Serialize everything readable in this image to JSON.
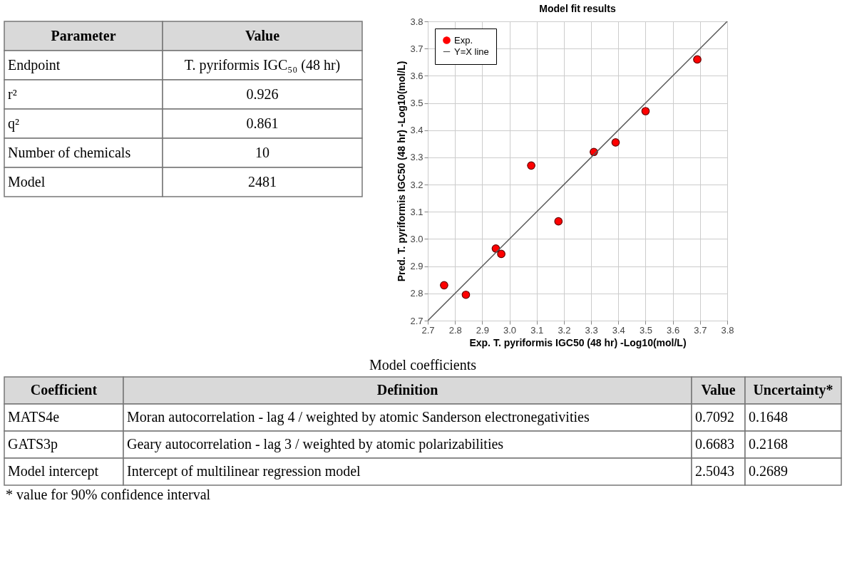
{
  "chart_data": [
    {
      "type": "other",
      "categories": [
        "Parameter",
        "Value"
      ],
      "annotations": [
        "Endpoint",
        "T. pyriformis IGC₅₀ (48 hr)",
        "r²",
        "0.926",
        "q²",
        "0.861",
        "Number of chemicals",
        "10",
        "Model",
        "2481"
      ]
    },
    {
      "type": "scatter",
      "title": "Model fit results",
      "xlabel": "Exp. T. pyriformis IGC50 (48 hr) -Log10(mol/L)",
      "ylabel": "Pred. T. pyriformis IGC50 (48 hr) -Log10(mol/L)",
      "xlim": [
        2.7,
        3.8
      ],
      "ylim": [
        2.7,
        3.8
      ],
      "xticks": [
        {
          "value": 2.7,
          "label": "2.7"
        },
        {
          "value": 2.8,
          "label": "2.8"
        },
        {
          "value": 2.9,
          "label": "2.9"
        },
        {
          "value": 3.0,
          "label": "3.0"
        },
        {
          "value": 3.1,
          "label": "3.1"
        },
        {
          "value": 3.2,
          "label": "3.2"
        },
        {
          "value": 3.3,
          "label": "3.3"
        },
        {
          "value": 3.4,
          "label": "3.4"
        },
        {
          "value": 3.5,
          "label": "3.5"
        },
        {
          "value": 3.6,
          "label": "3.6"
        },
        {
          "value": 3.7,
          "label": "3.7"
        },
        {
          "value": 3.8,
          "label": "3.8"
        }
      ],
      "yticks": [
        {
          "value": 2.7,
          "label": "2.7"
        },
        {
          "value": 2.8,
          "label": "2.8"
        },
        {
          "value": 2.9,
          "label": "2.9"
        },
        {
          "value": 3.0,
          "label": "3.0"
        },
        {
          "value": 3.1,
          "label": "3.1"
        },
        {
          "value": 3.2,
          "label": "3.2"
        },
        {
          "value": 3.3,
          "label": "3.3"
        },
        {
          "value": 3.4,
          "label": "3.4"
        },
        {
          "value": 3.5,
          "label": "3.5"
        },
        {
          "value": 3.6,
          "label": "3.6"
        },
        {
          "value": 3.7,
          "label": "3.7"
        },
        {
          "value": 3.8,
          "label": "3.8"
        }
      ],
      "grid": true,
      "legend": "top left",
      "series": [
        {
          "name": "Exp.",
          "type": "scatter",
          "marker": "circle",
          "color": "#ff0000",
          "x": [
            2.76,
            2.84,
            2.95,
            2.97,
            3.08,
            3.18,
            3.31,
            3.39,
            3.5,
            3.69
          ],
          "values": [
            2.83,
            2.795,
            2.965,
            2.945,
            3.27,
            3.065,
            3.32,
            3.355,
            3.47,
            3.66
          ]
        },
        {
          "name": "Y=X line",
          "type": "line",
          "marker": "none",
          "line_style": "solid",
          "color": "#555555",
          "x": [
            2.7,
            3.8
          ],
          "values": [
            2.7,
            3.8
          ]
        }
      ]
    },
    {
      "type": "other",
      "title": "Model coefficients",
      "categories": [
        "Coefficient",
        "Definition",
        "Value",
        "Uncertainty*"
      ],
      "annotations": [
        "MATS4e",
        "Moran autocorrelation - lag 4 / weighted by atomic Sanderson electronegativities",
        "0.7092",
        "0.1648",
        "GATS3p",
        "Geary autocorrelation - lag 3 / weighted by atomic polarizabilities",
        "0.6683",
        "0.2168",
        "Model intercept",
        "Intercept of multilinear regression model",
        "2.5043",
        "0.2689",
        "* value for 90% confidence interval"
      ]
    }
  ]
}
